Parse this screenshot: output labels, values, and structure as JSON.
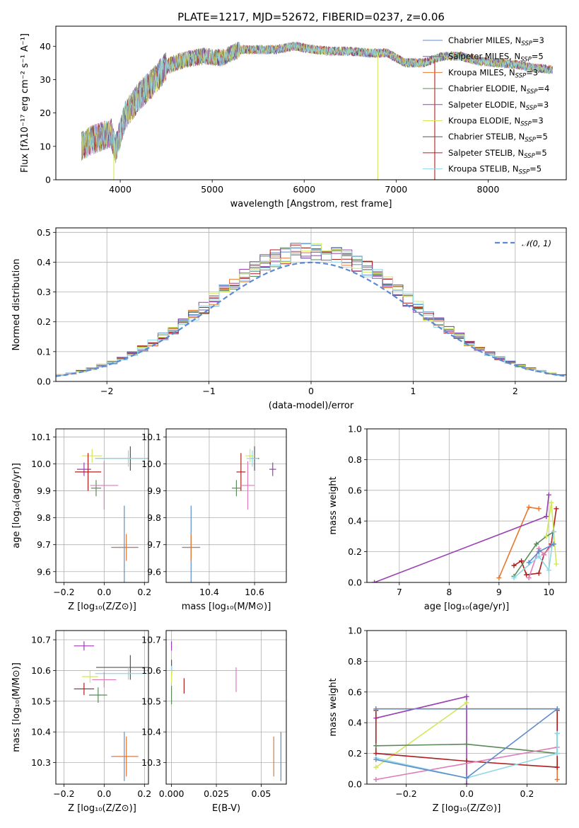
{
  "chart_data": [
    {
      "id": "spectrum",
      "type": "line",
      "title": "PLATE=1217, MJD=52672, FIBERID=0237, z=0.06",
      "xlabel": "wavelength [Angstrom, rest frame]",
      "ylabel": "Flux [fλ10⁻¹⁷ erg cm⁻² s⁻¹ A⁻¹]",
      "xlim": [
        3300,
        8850
      ],
      "ylim": [
        0,
        46
      ],
      "xticks": [
        4000,
        5000,
        6000,
        7000,
        8000
      ],
      "yticks": [
        0,
        10,
        20,
        30,
        40
      ],
      "grid": false,
      "legend_position": "top-right",
      "data_range_x": [
        3580,
        8700
      ],
      "continuum": {
        "x": [
          3580,
          3700,
          3800,
          3900,
          3950,
          4050,
          4200,
          4350,
          4500,
          4700,
          4900,
          5100,
          5300,
          5500,
          5700,
          5900,
          6100,
          6300,
          6500,
          6700,
          6900,
          7100,
          7300,
          7500,
          7700,
          7900,
          8100,
          8300,
          8500,
          8700
        ],
        "y": [
          10,
          12,
          13,
          14,
          9,
          19,
          25,
          29,
          34,
          36,
          37,
          36.5,
          39,
          39,
          39,
          40,
          39,
          38.5,
          38.5,
          38,
          38,
          35,
          35,
          37,
          37,
          35.5,
          35,
          34.5,
          33.5,
          33
        ]
      },
      "legend": [
        {
          "label": "Chabrier MILES, N",
          "sub": "SSP",
          "suffix": "=3",
          "color": "#5d8ecb"
        },
        {
          "label": "Salpeter MILES, N",
          "sub": "SSP",
          "suffix": "=5",
          "color": "#7a5fa8"
        },
        {
          "label": "Kroupa MILES, N",
          "sub": "SSP",
          "suffix": "=3",
          "color": "#e8762d"
        },
        {
          "label": "Chabrier ELODIE, N",
          "sub": "SSP",
          "suffix": "=4",
          "color": "#5b8a5a"
        },
        {
          "label": "Salpeter ELODIE, N",
          "sub": "SSP",
          "suffix": "=3",
          "color": "#9b3fb5"
        },
        {
          "label": "Kroupa ELODIE, N",
          "sub": "SSP",
          "suffix": "=3",
          "color": "#d2e85a"
        },
        {
          "label": "Chabrier STELIB, N",
          "sub": "SSP",
          "suffix": "=5",
          "color": "#555555"
        },
        {
          "label": "Salpeter STELIB, N",
          "sub": "SSP",
          "suffix": "=5",
          "color": "#b01e1e"
        },
        {
          "label": "Kroupa STELIB, N",
          "sub": "SSP",
          "suffix": "=5",
          "color": "#8fd8e8"
        }
      ],
      "drops": [
        {
          "x": 3930,
          "color": "#d2e85a"
        },
        {
          "x": 6800,
          "color": "#d2e85a"
        },
        {
          "x": 7420,
          "color": "#b01e1e"
        }
      ]
    },
    {
      "id": "residuals",
      "type": "histogram",
      "xlabel": "(data-model)/error",
      "ylabel": "Normed distribution",
      "xlim": [
        -2.5,
        2.5
      ],
      "ylim": [
        0,
        0.515
      ],
      "xticks": [
        -2,
        -1,
        0,
        1,
        2
      ],
      "yticks": [
        0.0,
        0.1,
        0.2,
        0.3,
        0.4,
        0.5
      ],
      "grid": true,
      "legend_position": "top-right",
      "legend": [
        {
          "label": "𝒩(0, 1)",
          "color": "#5b8ad6"
        }
      ],
      "bin_width": 0.1
    },
    {
      "id": "age-vs-Z",
      "type": "errorbar",
      "xlabel": "Z [log₁₀(Z/Z⊙)]",
      "ylabel": "age  [log₁₀(age/yr)]",
      "xlim": [
        -0.24,
        0.22
      ],
      "ylim": [
        9.56,
        10.13
      ],
      "xticks": [
        -0.2,
        0.0,
        0.2
      ],
      "yticks": [
        9.6,
        9.7,
        9.8,
        9.9,
        10.0,
        10.1
      ],
      "grid": true,
      "points": [
        {
          "x": 0.1,
          "xerr": 0.13,
          "y": 9.69,
          "yerr": 0.31,
          "color": "#5d8ecb"
        },
        {
          "x": 0.11,
          "xerr": 0.12,
          "y": 9.69,
          "yerr": 0.1,
          "color": "#e8762d"
        },
        {
          "x": 0.13,
          "xerr": 0.35,
          "y": 10.02,
          "yerr": 0.09,
          "color": "#555555"
        },
        {
          "x": 0.12,
          "xerr": 0.33,
          "y": 10.02,
          "yerr": 0.06,
          "color": "#8fd8e8"
        },
        {
          "x": -0.06,
          "xerr": 0.1,
          "y": 10.03,
          "yerr": 0.05,
          "color": "#d2e85a"
        },
        {
          "x": -0.1,
          "xerr": 0.07,
          "y": 9.98,
          "yerr": 0.05,
          "color": "#9b3fb5"
        },
        {
          "x": -0.08,
          "xerr": 0.13,
          "y": 9.97,
          "yerr": 0.14,
          "color": "#b01e1e"
        },
        {
          "x": -0.04,
          "xerr": 0.05,
          "y": 9.91,
          "yerr": 0.06,
          "color": "#5b8a5a"
        },
        {
          "x": 0.0,
          "xerr": 0.14,
          "y": 9.92,
          "yerr": 0.18,
          "color": "#e07ab8"
        }
      ]
    },
    {
      "id": "age-vs-mass",
      "type": "errorbar",
      "xlabel": "mass [log₁₀(M/M⊙)]",
      "ylabel": "",
      "xlim": [
        10.21,
        10.74
      ],
      "ylim": [
        9.56,
        10.13
      ],
      "xticks": [
        10.4,
        10.6
      ],
      "yticks": [
        9.6,
        9.7,
        9.8,
        9.9,
        10.0,
        10.1
      ],
      "grid": true,
      "points": [
        {
          "x": 10.32,
          "xerr": 0.08,
          "y": 9.69,
          "yerr": 0.31,
          "color": "#5d8ecb"
        },
        {
          "x": 10.32,
          "xerr": 0.07,
          "y": 9.69,
          "yerr": 0.1,
          "color": "#e8762d"
        },
        {
          "x": 10.6,
          "xerr": 0.04,
          "y": 10.02,
          "yerr": 0.09,
          "color": "#555555"
        },
        {
          "x": 10.59,
          "xerr": 0.05,
          "y": 10.02,
          "yerr": 0.06,
          "color": "#8fd8e8"
        },
        {
          "x": 10.58,
          "xerr": 0.04,
          "y": 10.03,
          "yerr": 0.05,
          "color": "#d2e85a"
        },
        {
          "x": 10.68,
          "xerr": 0.03,
          "y": 9.98,
          "yerr": 0.05,
          "color": "#9b3fb5"
        },
        {
          "x": 10.54,
          "xerr": 0.04,
          "y": 9.97,
          "yerr": 0.14,
          "color": "#b01e1e"
        },
        {
          "x": 10.52,
          "xerr": 0.04,
          "y": 9.91,
          "yerr": 0.06,
          "color": "#5b8a5a"
        },
        {
          "x": 10.57,
          "xerr": 0.06,
          "y": 9.92,
          "yerr": 0.18,
          "color": "#e07ab8"
        }
      ]
    },
    {
      "id": "weight-vs-age",
      "type": "line",
      "xlabel": "age  [log₁₀(age/yr)]",
      "ylabel": "mass weight",
      "xlim": [
        6.35,
        10.35
      ],
      "ylim": [
        0,
        1
      ],
      "xticks": [
        7,
        8,
        9,
        10
      ],
      "yticks": [
        0.0,
        0.2,
        0.4,
        0.6,
        0.8,
        1.0
      ],
      "grid": true,
      "series": [
        {
          "color": "#e8762d",
          "x": [
            9.0,
            9.6,
            9.8
          ],
          "y": [
            0.03,
            0.49,
            0.48
          ]
        },
        {
          "color": "#9b3fb5",
          "x": [
            6.5,
            9.95,
            10.0,
            9.95
          ],
          "y": [
            0.0,
            0.43,
            0.57,
            0.43
          ]
        },
        {
          "color": "#b01e1e",
          "x": [
            9.3,
            9.45,
            9.55,
            9.8,
            9.9,
            10.05,
            10.15
          ],
          "y": [
            0.11,
            0.14,
            0.05,
            0.06,
            0.18,
            0.25,
            0.48
          ]
        },
        {
          "color": "#5b8a5a",
          "x": [
            9.3,
            9.75,
            9.95,
            10.1
          ],
          "y": [
            0.04,
            0.25,
            0.3,
            0.33
          ]
        },
        {
          "color": "#d2e85a",
          "x": [
            9.95,
            10.05,
            10.15
          ],
          "y": [
            0.3,
            0.52,
            0.12
          ]
        },
        {
          "color": "#e07ab8",
          "x": [
            9.6,
            9.8,
            9.9,
            10.05
          ],
          "y": [
            0.03,
            0.22,
            0.18,
            0.24
          ]
        },
        {
          "color": "#8fd8e8",
          "x": [
            9.3,
            9.8,
            10.0,
            10.1
          ],
          "y": [
            0.03,
            0.17,
            0.08,
            0.33
          ]
        },
        {
          "color": "#5d8ecb",
          "x": [
            9.6,
            9.8,
            10.1
          ],
          "y": [
            0.13,
            0.2,
            0.25
          ]
        }
      ]
    },
    {
      "id": "mass-vs-Z",
      "type": "errorbar",
      "xlabel": "Z [log₁₀(Z/Z⊙)]",
      "ylabel": "mass [log₁₀(M/M⊙)]",
      "xlim": [
        -0.24,
        0.22
      ],
      "ylim": [
        10.23,
        10.73
      ],
      "xticks": [
        -0.2,
        0.0,
        0.2
      ],
      "yticks": [
        10.3,
        10.4,
        10.5,
        10.6,
        10.7
      ],
      "grid": true,
      "points": [
        {
          "x": 0.1,
          "xerr": 0.13,
          "y": 10.32,
          "yerr": 0.16,
          "color": "#5d8ecb"
        },
        {
          "x": 0.11,
          "xerr": 0.12,
          "y": 10.32,
          "yerr": 0.13,
          "color": "#e8762d"
        },
        {
          "x": 0.13,
          "xerr": 0.34,
          "y": 10.61,
          "yerr": 0.08,
          "color": "#555555"
        },
        {
          "x": 0.12,
          "xerr": 0.33,
          "y": 10.59,
          "yerr": 0.04,
          "color": "#8fd8e8"
        },
        {
          "x": -0.07,
          "xerr": 0.08,
          "y": 10.58,
          "yerr": 0.04,
          "color": "#d2e85a"
        },
        {
          "x": -0.1,
          "xerr": 0.1,
          "y": 10.68,
          "yerr": 0.03,
          "color": "#9b3fb5"
        },
        {
          "x": -0.1,
          "xerr": 0.1,
          "y": 10.54,
          "yerr": 0.04,
          "color": "#b01e1e"
        },
        {
          "x": -0.03,
          "xerr": 0.09,
          "y": 10.52,
          "yerr": 0.05,
          "color": "#5b8a5a"
        },
        {
          "x": 0.0,
          "xerr": 0.12,
          "y": 10.57,
          "yerr": 0.05,
          "color": "#e07ab8"
        }
      ]
    },
    {
      "id": "mass-vs-EBV",
      "type": "errorbar",
      "xlabel": "E(B-V)",
      "ylabel": "",
      "xlim": [
        -0.003,
        0.064
      ],
      "ylim": [
        10.23,
        10.73
      ],
      "xticks": [
        0.0,
        0.025,
        0.05
      ],
      "yticks": [
        10.3,
        10.4,
        10.5,
        10.6,
        10.7
      ],
      "grid": true,
      "points": [
        {
          "x": 0.061,
          "xerr": 0,
          "y": 10.32,
          "yerr": 0.16,
          "color": "#5d8ecb"
        },
        {
          "x": 0.057,
          "xerr": 0,
          "y": 10.32,
          "yerr": 0.13,
          "color": "#e8762d"
        },
        {
          "x": 0.0,
          "xerr": 0,
          "y": 10.61,
          "yerr": 0.05,
          "color": "#555555"
        },
        {
          "x": 0.0,
          "xerr": 0,
          "y": 10.59,
          "yerr": 0.05,
          "color": "#8fd8e8"
        },
        {
          "x": 0.0,
          "xerr": 0,
          "y": 10.58,
          "yerr": 0.04,
          "color": "#d2e85a"
        },
        {
          "x": 0.0,
          "xerr": 0,
          "y": 10.68,
          "yerr": 0.03,
          "color": "#9b3fb5"
        },
        {
          "x": 0.007,
          "xerr": 0,
          "y": 10.55,
          "yerr": 0.05,
          "color": "#b01e1e"
        },
        {
          "x": 0.0,
          "xerr": 0,
          "y": 10.52,
          "yerr": 0.06,
          "color": "#5b8a5a"
        },
        {
          "x": 0.036,
          "xerr": 0,
          "y": 10.57,
          "yerr": 0.08,
          "color": "#e07ab8"
        }
      ]
    },
    {
      "id": "weight-vs-Z",
      "type": "line",
      "xlabel": "Z [log₁₀(Z/Z⊙)]",
      "ylabel": "mass weight",
      "xlim": [
        -0.33,
        0.33
      ],
      "ylim": [
        0,
        1
      ],
      "xticks": [
        -0.2,
        0.0,
        0.2
      ],
      "yticks": [
        0.0,
        0.2,
        0.4,
        0.6,
        0.8,
        1.0
      ],
      "grid": true,
      "series": [
        {
          "color": "#e8762d",
          "x": [
            -0.3,
            0.3,
            0.3
          ],
          "y": [
            0.49,
            0.49,
            0.03
          ]
        },
        {
          "color": "#9b3fb5",
          "x": [
            -0.3,
            0.0,
            0.0
          ],
          "y": [
            0.43,
            0.57,
            0.0
          ]
        },
        {
          "color": "#d2e85a",
          "x": [
            -0.3,
            0.0
          ],
          "y": [
            0.11,
            0.53
          ]
        },
        {
          "color": "#b01e1e",
          "x": [
            -0.3,
            -0.3,
            0.0,
            0.3,
            0.3
          ],
          "y": [
            0.48,
            0.2,
            0.15,
            0.11,
            0.48
          ]
        },
        {
          "color": "#5b8a5a",
          "x": [
            -0.3,
            0.0,
            0.3,
            0.3
          ],
          "y": [
            0.25,
            0.26,
            0.2,
            0.33
          ]
        },
        {
          "color": "#e07ab8",
          "x": [
            -0.3,
            0.3
          ],
          "y": [
            0.03,
            0.24
          ]
        },
        {
          "color": "#8fd8e8",
          "x": [
            -0.3,
            0.0,
            0.3,
            0.3
          ],
          "y": [
            0.17,
            0.04,
            0.2,
            0.33
          ]
        },
        {
          "color": "#5d8ecb",
          "x": [
            -0.3,
            0.3,
            0.0,
            -0.3
          ],
          "y": [
            0.49,
            0.49,
            0.04,
            0.16
          ]
        }
      ]
    }
  ]
}
